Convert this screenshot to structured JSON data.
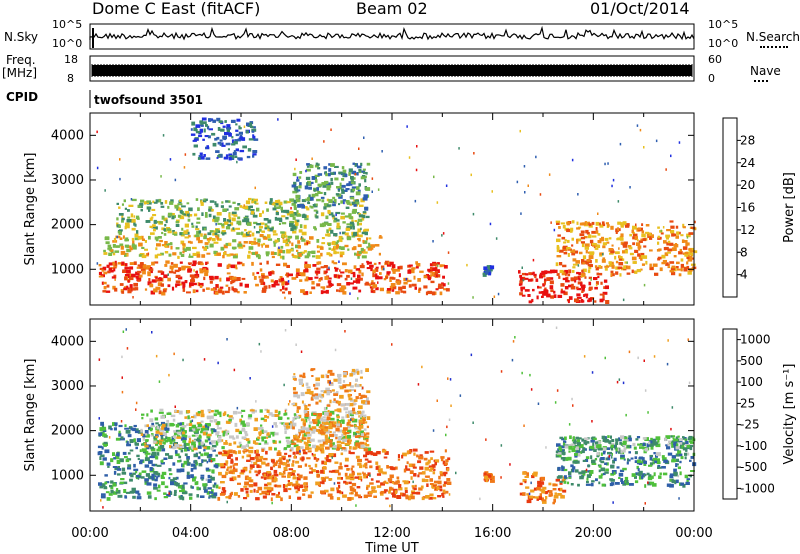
{
  "header": {
    "station": "Dome C East (fitACF)",
    "beam": "Beam 02",
    "date": "01/Oct/2014"
  },
  "summary": {
    "nsky_label": "N.Sky",
    "nsky_ticks": [
      "10^5",
      "10^0"
    ],
    "nsearch_label": "N.Search",
    "nsearch_ticks": [
      "10^5",
      "10^0"
    ],
    "freq_label": "Freq.",
    "freq_unit": "[MHz]",
    "freq_ticks": [
      "18",
      "8"
    ],
    "nave_label": "Nave",
    "nave_ticks": [
      "60",
      "0"
    ],
    "cpid_label": "CPID",
    "cpid_value": "twofsound 3501"
  },
  "chart_data": [
    {
      "type": "heatmap",
      "name": "power",
      "ylabel": "Slant Range [km]",
      "ylim": [
        200,
        4500
      ],
      "yticks": [
        1000,
        2000,
        3000,
        4000
      ],
      "xlim": [
        0,
        24
      ],
      "colorbar_label": "Power [dB]",
      "colorbar_ticks": [
        "4",
        "8",
        "12",
        "16",
        "20",
        "24",
        "28"
      ],
      "colors": [
        "#2030e0",
        "#2f5fb0",
        "#3e8a6a",
        "#78b84a",
        "#e8c020",
        "#f08a18",
        "#e84a10",
        "#e81010"
      ],
      "bands": [
        {
          "t0": 0.3,
          "t1": 14.2,
          "r0": 500,
          "r1": 1200,
          "level": 6
        },
        {
          "t0": 0.5,
          "t1": 11.5,
          "r0": 1300,
          "r1": 1800,
          "level": 4
        },
        {
          "t0": 1.0,
          "t1": 11.0,
          "r0": 1800,
          "r1": 2600,
          "level": 3
        },
        {
          "t0": 8.0,
          "t1": 11.0,
          "r0": 2400,
          "r1": 3400,
          "level": 2
        },
        {
          "t0": 4.0,
          "t1": 6.5,
          "r0": 3500,
          "r1": 4400,
          "level": 1
        },
        {
          "t0": 17.0,
          "t1": 20.5,
          "r0": 300,
          "r1": 1000,
          "level": 7
        },
        {
          "t0": 18.5,
          "t1": 24.0,
          "r0": 900,
          "r1": 2100,
          "level": 5
        },
        {
          "t0": 15.6,
          "t1": 15.9,
          "r0": 900,
          "r1": 1100,
          "level": 1
        }
      ]
    },
    {
      "type": "heatmap",
      "name": "velocity",
      "ylabel": "Slant Range [km]",
      "xlabel": "Time UT",
      "ylim": [
        200,
        4500
      ],
      "yticks": [
        1000,
        2000,
        3000,
        4000
      ],
      "xlim": [
        0,
        24
      ],
      "xticks": [
        "00:00",
        "04:00",
        "08:00",
        "12:00",
        "16:00",
        "20:00",
        "00:00"
      ],
      "colorbar_label": "Velocity [m s⁻¹]",
      "colorbar_ticks": [
        "1000",
        "500",
        "100",
        "25",
        "-25",
        "-100",
        "-500",
        "-1000"
      ],
      "colors": [
        "#2030d0",
        "#2f5fa8",
        "#3e8a6a",
        "#4fc03a",
        "#c8c8c8",
        "#f0a020",
        "#f07818",
        "#e83a10",
        "#e01010"
      ],
      "bands": [
        {
          "t0": 0.3,
          "t1": 5.0,
          "r0": 500,
          "r1": 2200,
          "level": 2
        },
        {
          "t0": 2.0,
          "t1": 11.0,
          "r0": 1600,
          "r1": 2500,
          "level": 4
        },
        {
          "t0": 5.0,
          "t1": 14.2,
          "r0": 500,
          "r1": 1600,
          "level": 6
        },
        {
          "t0": 8.0,
          "t1": 11.0,
          "r0": 1600,
          "r1": 3400,
          "level": 5
        },
        {
          "t0": 17.0,
          "t1": 18.8,
          "r0": 400,
          "r1": 1100,
          "level": 6
        },
        {
          "t0": 18.5,
          "t1": 24.0,
          "r0": 800,
          "r1": 1900,
          "level": 2
        },
        {
          "t0": 18.5,
          "t1": 24.0,
          "r0": 1500,
          "r1": 1900,
          "level": 3
        },
        {
          "t0": 15.6,
          "t1": 15.9,
          "r0": 900,
          "r1": 1100,
          "level": 6
        }
      ]
    }
  ]
}
